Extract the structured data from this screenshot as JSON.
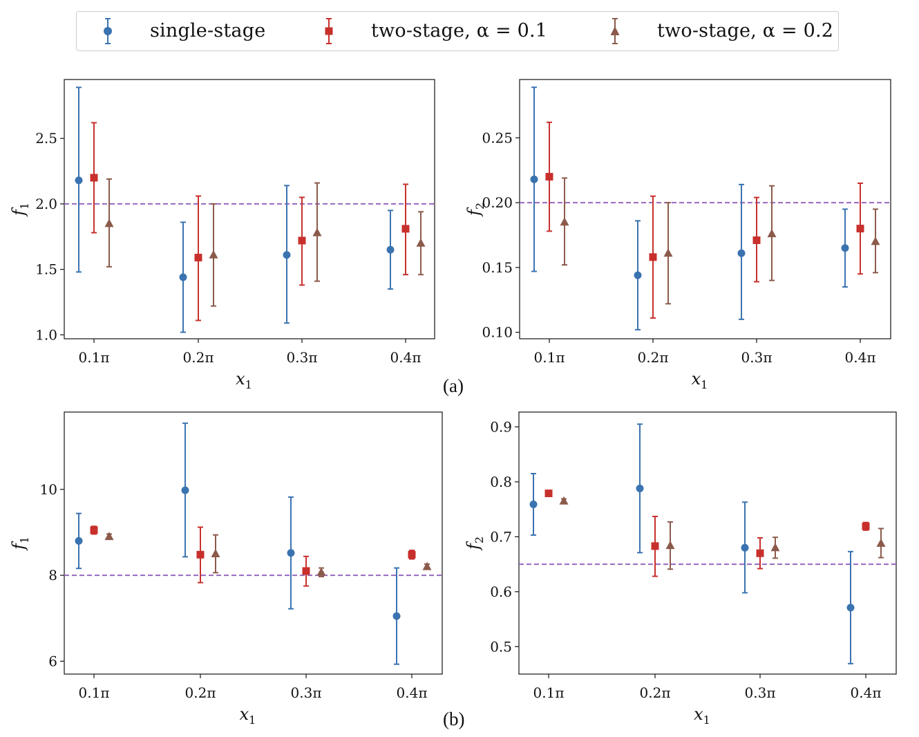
{
  "legend": {
    "items": [
      {
        "label": "single-stage",
        "color": "#3a73b0",
        "marker": "circle"
      },
      {
        "label": "two-stage, α = 0.1",
        "color": "#c8302c",
        "marker": "square"
      },
      {
        "label": "two-stage, α = 0.2",
        "color": "#8b5a4b",
        "marker": "triangle"
      }
    ]
  },
  "panel_labels": {
    "a": "(a)",
    "b": "(b)"
  },
  "reference_color": "#9467bd",
  "chart_data": [
    {
      "type": "scatter",
      "panel": "a-left",
      "xlabel": "x1",
      "ylabel": "f1",
      "categories": [
        "0.1π",
        "0.2π",
        "0.3π",
        "0.4π"
      ],
      "ylim": [
        0.97,
        2.95
      ],
      "yticks": [
        1.0,
        1.5,
        2.0,
        2.5
      ],
      "ytick_labels": [
        "1.0",
        "1.5",
        "2.0",
        "2.5"
      ],
      "reference_line": 2.0,
      "series": [
        {
          "name": "single-stage",
          "values": [
            2.18,
            1.44,
            1.61,
            1.65
          ],
          "lower": [
            1.48,
            1.02,
            1.09,
            1.35
          ],
          "upper": [
            2.89,
            1.86,
            2.14,
            1.95
          ]
        },
        {
          "name": "two-stage, α = 0.1",
          "values": [
            2.2,
            1.59,
            1.72,
            1.81
          ],
          "lower": [
            1.78,
            1.11,
            1.38,
            1.46
          ],
          "upper": [
            2.62,
            2.06,
            2.05,
            2.15
          ]
        },
        {
          "name": "two-stage, α = 0.2",
          "values": [
            1.85,
            1.61,
            1.78,
            1.7
          ],
          "lower": [
            1.52,
            1.22,
            1.41,
            1.46
          ],
          "upper": [
            2.19,
            2.0,
            2.16,
            1.94
          ]
        }
      ]
    },
    {
      "type": "scatter",
      "panel": "a-right",
      "xlabel": "x1",
      "ylabel": "f2",
      "categories": [
        "0.1π",
        "0.2π",
        "0.3π",
        "0.4π"
      ],
      "ylim": [
        0.095,
        0.295
      ],
      "yticks": [
        0.1,
        0.15,
        0.2,
        0.25
      ],
      "ytick_labels": [
        "0.10",
        "0.15",
        "0.20",
        "0.25"
      ],
      "reference_line": 0.2,
      "series": [
        {
          "name": "single-stage",
          "values": [
            0.218,
            0.144,
            0.161,
            0.165
          ],
          "lower": [
            0.147,
            0.102,
            0.11,
            0.135
          ],
          "upper": [
            0.289,
            0.186,
            0.214,
            0.195
          ]
        },
        {
          "name": "two-stage, α = 0.1",
          "values": [
            0.22,
            0.158,
            0.171,
            0.18
          ],
          "lower": [
            0.178,
            0.111,
            0.139,
            0.145
          ],
          "upper": [
            0.262,
            0.205,
            0.204,
            0.215
          ]
        },
        {
          "name": "two-stage, α = 0.2",
          "values": [
            0.185,
            0.161,
            0.176,
            0.17
          ],
          "lower": [
            0.152,
            0.122,
            0.14,
            0.146
          ],
          "upper": [
            0.219,
            0.2,
            0.213,
            0.195
          ]
        }
      ]
    },
    {
      "type": "scatter",
      "panel": "b-left",
      "xlabel": "x1",
      "ylabel": "f1",
      "categories": [
        "0.1π",
        "0.2π",
        "0.3π",
        "0.4π"
      ],
      "ylim": [
        5.7,
        11.8
      ],
      "yticks": [
        6,
        8,
        10
      ],
      "ytick_labels": [
        "6",
        "8",
        "10"
      ],
      "reference_line": 8.0,
      "series": [
        {
          "name": "single-stage",
          "values": [
            8.8,
            9.98,
            8.52,
            7.05
          ],
          "lower": [
            8.16,
            8.43,
            7.22,
            5.93
          ],
          "upper": [
            9.44,
            11.54,
            9.82,
            8.17
          ]
        },
        {
          "name": "two-stage, α = 0.1",
          "values": [
            9.05,
            8.48,
            8.1,
            8.48
          ],
          "lower": [
            8.96,
            7.83,
            7.75,
            8.38
          ],
          "upper": [
            9.14,
            9.12,
            8.44,
            8.58
          ]
        },
        {
          "name": "two-stage, α = 0.2",
          "values": [
            8.9,
            8.5,
            8.07,
            8.2
          ],
          "lower": [
            8.84,
            8.06,
            7.97,
            8.14
          ],
          "upper": [
            8.96,
            8.94,
            8.17,
            8.26
          ]
        }
      ]
    },
    {
      "type": "scatter",
      "panel": "b-right",
      "xlabel": "x1",
      "ylabel": "f2",
      "categories": [
        "0.1π",
        "0.2π",
        "0.3π",
        "0.4π"
      ],
      "ylim": [
        0.45,
        0.927
      ],
      "yticks": [
        0.5,
        0.6,
        0.7,
        0.8,
        0.9
      ],
      "ytick_labels": [
        "0.5",
        "0.6",
        "0.7",
        "0.8",
        "0.9"
      ],
      "reference_line": 0.65,
      "series": [
        {
          "name": "single-stage",
          "values": [
            0.759,
            0.788,
            0.68,
            0.571
          ],
          "lower": [
            0.703,
            0.671,
            0.598,
            0.469
          ],
          "upper": [
            0.815,
            0.905,
            0.763,
            0.673
          ]
        },
        {
          "name": "two-stage, α = 0.1",
          "values": [
            0.779,
            0.683,
            0.67,
            0.719
          ],
          "lower": [
            0.777,
            0.628,
            0.642,
            0.712
          ],
          "upper": [
            0.781,
            0.737,
            0.698,
            0.726
          ]
        },
        {
          "name": "two-stage, α = 0.2",
          "values": [
            0.765,
            0.684,
            0.68,
            0.688
          ],
          "lower": [
            0.761,
            0.641,
            0.661,
            0.662
          ],
          "upper": [
            0.769,
            0.727,
            0.699,
            0.715
          ]
        }
      ]
    }
  ]
}
